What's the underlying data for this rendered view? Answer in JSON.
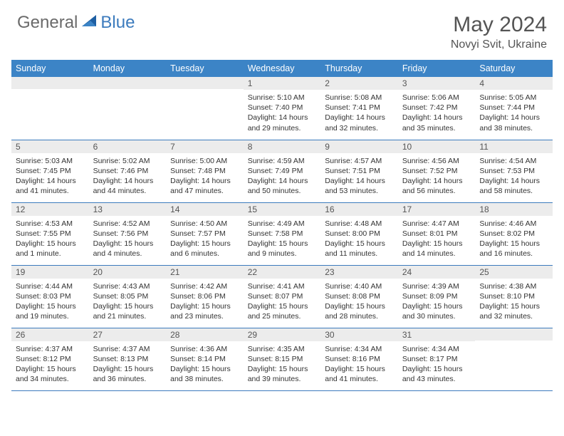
{
  "logo": {
    "text_general": "General",
    "text_blue": "Blue"
  },
  "title": "May 2024",
  "location": "Novyi Svit, Ukraine",
  "colors": {
    "header_bg": "#3c84c6",
    "header_text": "#ffffff",
    "daynum_bg": "#ececec",
    "border": "#3c7bbd",
    "logo_gray": "#6a6a6a",
    "logo_blue": "#3c7bbd"
  },
  "day_headers": [
    "Sunday",
    "Monday",
    "Tuesday",
    "Wednesday",
    "Thursday",
    "Friday",
    "Saturday"
  ],
  "weeks": [
    [
      {
        "n": "",
        "sr": "",
        "ss": "",
        "dl": ""
      },
      {
        "n": "",
        "sr": "",
        "ss": "",
        "dl": ""
      },
      {
        "n": "",
        "sr": "",
        "ss": "",
        "dl": ""
      },
      {
        "n": "1",
        "sr": "Sunrise: 5:10 AM",
        "ss": "Sunset: 7:40 PM",
        "dl": "Daylight: 14 hours and 29 minutes."
      },
      {
        "n": "2",
        "sr": "Sunrise: 5:08 AM",
        "ss": "Sunset: 7:41 PM",
        "dl": "Daylight: 14 hours and 32 minutes."
      },
      {
        "n": "3",
        "sr": "Sunrise: 5:06 AM",
        "ss": "Sunset: 7:42 PM",
        "dl": "Daylight: 14 hours and 35 minutes."
      },
      {
        "n": "4",
        "sr": "Sunrise: 5:05 AM",
        "ss": "Sunset: 7:44 PM",
        "dl": "Daylight: 14 hours and 38 minutes."
      }
    ],
    [
      {
        "n": "5",
        "sr": "Sunrise: 5:03 AM",
        "ss": "Sunset: 7:45 PM",
        "dl": "Daylight: 14 hours and 41 minutes."
      },
      {
        "n": "6",
        "sr": "Sunrise: 5:02 AM",
        "ss": "Sunset: 7:46 PM",
        "dl": "Daylight: 14 hours and 44 minutes."
      },
      {
        "n": "7",
        "sr": "Sunrise: 5:00 AM",
        "ss": "Sunset: 7:48 PM",
        "dl": "Daylight: 14 hours and 47 minutes."
      },
      {
        "n": "8",
        "sr": "Sunrise: 4:59 AM",
        "ss": "Sunset: 7:49 PM",
        "dl": "Daylight: 14 hours and 50 minutes."
      },
      {
        "n": "9",
        "sr": "Sunrise: 4:57 AM",
        "ss": "Sunset: 7:51 PM",
        "dl": "Daylight: 14 hours and 53 minutes."
      },
      {
        "n": "10",
        "sr": "Sunrise: 4:56 AM",
        "ss": "Sunset: 7:52 PM",
        "dl": "Daylight: 14 hours and 56 minutes."
      },
      {
        "n": "11",
        "sr": "Sunrise: 4:54 AM",
        "ss": "Sunset: 7:53 PM",
        "dl": "Daylight: 14 hours and 58 minutes."
      }
    ],
    [
      {
        "n": "12",
        "sr": "Sunrise: 4:53 AM",
        "ss": "Sunset: 7:55 PM",
        "dl": "Daylight: 15 hours and 1 minute."
      },
      {
        "n": "13",
        "sr": "Sunrise: 4:52 AM",
        "ss": "Sunset: 7:56 PM",
        "dl": "Daylight: 15 hours and 4 minutes."
      },
      {
        "n": "14",
        "sr": "Sunrise: 4:50 AM",
        "ss": "Sunset: 7:57 PM",
        "dl": "Daylight: 15 hours and 6 minutes."
      },
      {
        "n": "15",
        "sr": "Sunrise: 4:49 AM",
        "ss": "Sunset: 7:58 PM",
        "dl": "Daylight: 15 hours and 9 minutes."
      },
      {
        "n": "16",
        "sr": "Sunrise: 4:48 AM",
        "ss": "Sunset: 8:00 PM",
        "dl": "Daylight: 15 hours and 11 minutes."
      },
      {
        "n": "17",
        "sr": "Sunrise: 4:47 AM",
        "ss": "Sunset: 8:01 PM",
        "dl": "Daylight: 15 hours and 14 minutes."
      },
      {
        "n": "18",
        "sr": "Sunrise: 4:46 AM",
        "ss": "Sunset: 8:02 PM",
        "dl": "Daylight: 15 hours and 16 minutes."
      }
    ],
    [
      {
        "n": "19",
        "sr": "Sunrise: 4:44 AM",
        "ss": "Sunset: 8:03 PM",
        "dl": "Daylight: 15 hours and 19 minutes."
      },
      {
        "n": "20",
        "sr": "Sunrise: 4:43 AM",
        "ss": "Sunset: 8:05 PM",
        "dl": "Daylight: 15 hours and 21 minutes."
      },
      {
        "n": "21",
        "sr": "Sunrise: 4:42 AM",
        "ss": "Sunset: 8:06 PM",
        "dl": "Daylight: 15 hours and 23 minutes."
      },
      {
        "n": "22",
        "sr": "Sunrise: 4:41 AM",
        "ss": "Sunset: 8:07 PM",
        "dl": "Daylight: 15 hours and 25 minutes."
      },
      {
        "n": "23",
        "sr": "Sunrise: 4:40 AM",
        "ss": "Sunset: 8:08 PM",
        "dl": "Daylight: 15 hours and 28 minutes."
      },
      {
        "n": "24",
        "sr": "Sunrise: 4:39 AM",
        "ss": "Sunset: 8:09 PM",
        "dl": "Daylight: 15 hours and 30 minutes."
      },
      {
        "n": "25",
        "sr": "Sunrise: 4:38 AM",
        "ss": "Sunset: 8:10 PM",
        "dl": "Daylight: 15 hours and 32 minutes."
      }
    ],
    [
      {
        "n": "26",
        "sr": "Sunrise: 4:37 AM",
        "ss": "Sunset: 8:12 PM",
        "dl": "Daylight: 15 hours and 34 minutes."
      },
      {
        "n": "27",
        "sr": "Sunrise: 4:37 AM",
        "ss": "Sunset: 8:13 PM",
        "dl": "Daylight: 15 hours and 36 minutes."
      },
      {
        "n": "28",
        "sr": "Sunrise: 4:36 AM",
        "ss": "Sunset: 8:14 PM",
        "dl": "Daylight: 15 hours and 38 minutes."
      },
      {
        "n": "29",
        "sr": "Sunrise: 4:35 AM",
        "ss": "Sunset: 8:15 PM",
        "dl": "Daylight: 15 hours and 39 minutes."
      },
      {
        "n": "30",
        "sr": "Sunrise: 4:34 AM",
        "ss": "Sunset: 8:16 PM",
        "dl": "Daylight: 15 hours and 41 minutes."
      },
      {
        "n": "31",
        "sr": "Sunrise: 4:34 AM",
        "ss": "Sunset: 8:17 PM",
        "dl": "Daylight: 15 hours and 43 minutes."
      },
      {
        "n": "",
        "sr": "",
        "ss": "",
        "dl": ""
      }
    ]
  ]
}
